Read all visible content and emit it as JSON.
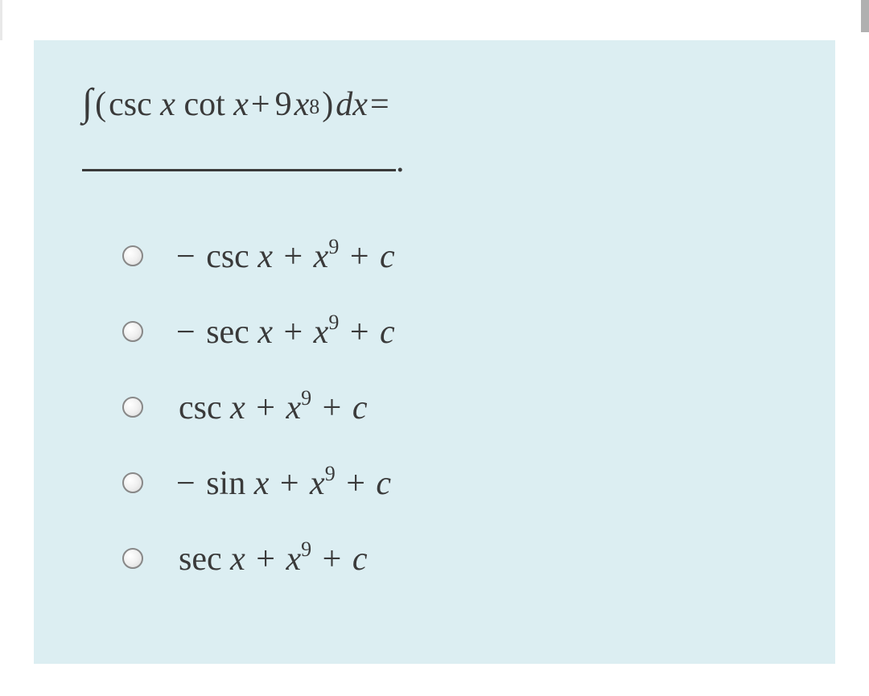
{
  "colors": {
    "panel_bg": "#dceef2",
    "page_bg": "#ffffff",
    "text": "#3a3a3a",
    "radio_border": "#888888"
  },
  "question": {
    "integral_symbol": "∫",
    "open_paren": "(",
    "func1": "csc",
    "var1": "x",
    "space1": " ",
    "func2": "cot",
    "var2": "x",
    "plus": " + ",
    "coef": "9",
    "var3": "x",
    "exp": "8",
    "close_paren": ")",
    "diff_d": "d",
    "diff_var": "x",
    "equals": " =",
    "blank_period": "."
  },
  "options": [
    {
      "prefix": "− ",
      "func": "csc",
      "var1": " x",
      "plus1": " + ",
      "var2": "x",
      "exp": "9",
      "plus2": " + ",
      "const": "c"
    },
    {
      "prefix": "− ",
      "func": "sec",
      "var1": " x",
      "plus1": " + ",
      "var2": "x",
      "exp": "9",
      "plus2": " + ",
      "const": "c"
    },
    {
      "prefix": "",
      "func": "csc",
      "var1": " x",
      "plus1": " + ",
      "var2": "x",
      "exp": "9",
      "plus2": " + ",
      "const": "c"
    },
    {
      "prefix": "− ",
      "func": "sin",
      "var1": " x",
      "plus1": " + ",
      "var2": "x",
      "exp": "9",
      "plus2": " + ",
      "const": "c"
    },
    {
      "prefix": "",
      "func": "sec",
      "var1": " x",
      "plus1": " + ",
      "var2": "x",
      "exp": "9",
      "plus2": " + ",
      "const": "c"
    }
  ]
}
